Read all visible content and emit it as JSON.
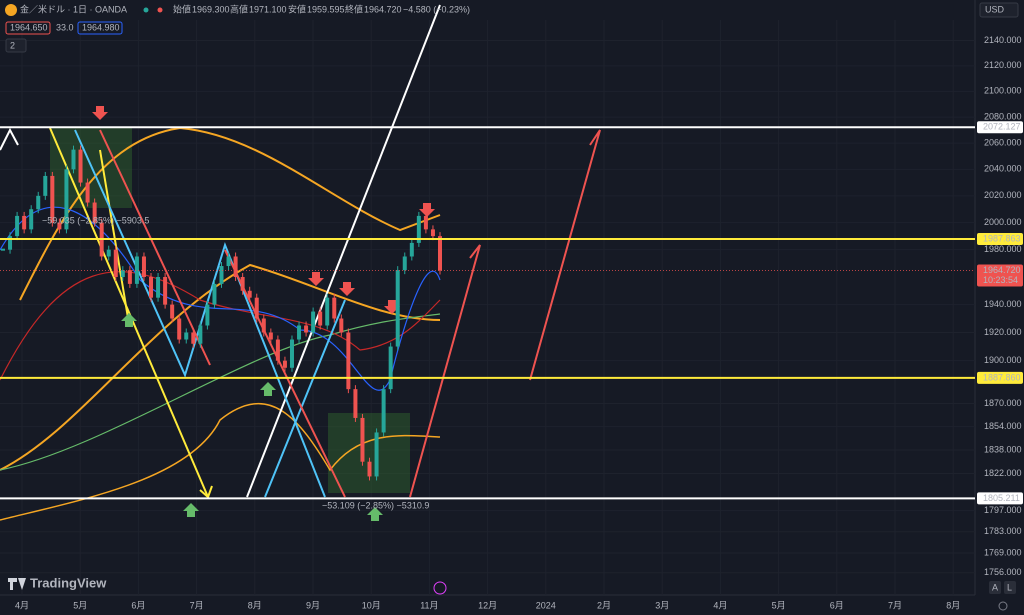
{
  "header": {
    "symbol": "金／米ドル · 1日 · OANDA",
    "open_label": "始値",
    "open": "1969.300",
    "high_label": "高値",
    "high": "1971.100",
    "low_label": "安値",
    "low": "1959.595",
    "close_label": "終値",
    "close": "1964.720",
    "change": "−4.580 (−0.23%)",
    "bid": "1964.650",
    "spread": "33.0",
    "ask": "1964.980",
    "indicators_count": "2"
  },
  "currency": "USD",
  "brand": "TradingView",
  "bottom_buttons": [
    "A",
    "L"
  ],
  "measures": [
    "−59.035 (−2.85%) −5903.5",
    "−53.109 (−2.85%) −5310.9"
  ],
  "chart_data": {
    "type": "candlestick",
    "log_scale": true,
    "ylim": [
      1750,
      2150
    ],
    "yticks": [
      {
        "value": 2140,
        "label": "2140.000"
      },
      {
        "value": 2120,
        "label": "2120.000"
      },
      {
        "value": 2100,
        "label": "2100.000"
      },
      {
        "value": 2080,
        "label": "2080.000"
      },
      {
        "value": 2060,
        "label": "2060.000"
      },
      {
        "value": 2040,
        "label": "2040.000"
      },
      {
        "value": 2020,
        "label": "2020.000"
      },
      {
        "value": 2000,
        "label": "2000.000"
      },
      {
        "value": 1980,
        "label": "1980.000"
      },
      {
        "value": 1940,
        "label": "1940.000"
      },
      {
        "value": 1920,
        "label": "1920.000"
      },
      {
        "value": 1900,
        "label": "1900.000"
      },
      {
        "value": 1870,
        "label": "1870.000"
      },
      {
        "value": 1854,
        "label": "1854.000"
      },
      {
        "value": 1838,
        "label": "1838.000"
      },
      {
        "value": 1822,
        "label": "1822.000"
      },
      {
        "value": 1797,
        "label": "1797.000"
      },
      {
        "value": 1783,
        "label": "1783.000"
      },
      {
        "value": 1769,
        "label": "1769.000"
      },
      {
        "value": 1756,
        "label": "1756.000"
      }
    ],
    "categories": [
      "4月",
      "5月",
      "6月",
      "7月",
      "8月",
      "9月",
      "10月",
      "11月",
      "12月",
      "2024",
      "2月",
      "3月",
      "4月",
      "5月",
      "6月",
      "7月",
      "8月"
    ],
    "close": [
      1980,
      1990,
      2005,
      1995,
      2010,
      2020,
      2035,
      2000,
      1995,
      2040,
      2055,
      2030,
      2015,
      2000,
      1975,
      1980,
      1960,
      1965,
      1955,
      1975,
      1960,
      1945,
      1960,
      1940,
      1930,
      1915,
      1920,
      1912,
      1925,
      1940,
      1955,
      1968,
      1975,
      1960,
      1950,
      1945,
      1930,
      1920,
      1915,
      1900,
      1895,
      1915,
      1925,
      1920,
      1935,
      1925,
      1945,
      1930,
      1920,
      1880,
      1860,
      1830,
      1820,
      1850,
      1880,
      1910,
      1965,
      1975,
      1985,
      2005,
      1995,
      1990,
      1964.72
    ],
    "up_color": "#26a69a",
    "down_color": "#ef5350",
    "levels": [
      {
        "value": 2072.127,
        "label": "2072.127",
        "color": "#ffffff"
      },
      {
        "value": 1987.863,
        "label": "1987.863",
        "color": "#ffeb3b"
      },
      {
        "value": 1887.86,
        "label": "1887.860",
        "color": "#ffeb3b"
      },
      {
        "value": 1805.211,
        "label": "1805.211",
        "color": "#ffffff"
      }
    ],
    "last_price": {
      "value": 1964.72,
      "label": "1964.720",
      "countdown": "10:23:54",
      "color": "#ef5350"
    }
  }
}
